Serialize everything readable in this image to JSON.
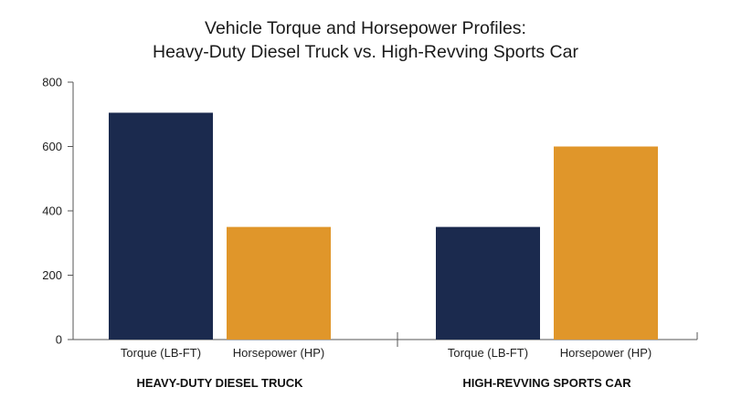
{
  "chart_data": {
    "type": "bar",
    "title": [
      "Vehicle Torque and Horsepower Profiles:",
      "Heavy-Duty Diesel Truck vs. High-Revving Sports Car"
    ],
    "groups": [
      {
        "name": "HEAVY-DUTY DIESEL TRUCK",
        "bars": [
          {
            "category": "Torque (LB-FT)",
            "value": 705
          },
          {
            "category": "Horsepower (HP)",
            "value": 350
          }
        ]
      },
      {
        "name": "HIGH-REVVING SPORTS CAR",
        "bars": [
          {
            "category": "Torque (LB-FT)",
            "value": 350
          },
          {
            "category": "Horsepower (HP)",
            "value": 600
          }
        ]
      }
    ],
    "ylim": [
      0,
      800
    ],
    "yticks": [
      0,
      200,
      400,
      600,
      800
    ],
    "colors": {
      "torque": "#1b2a4e",
      "horsepower": "#e0962a"
    },
    "grid": false
  }
}
